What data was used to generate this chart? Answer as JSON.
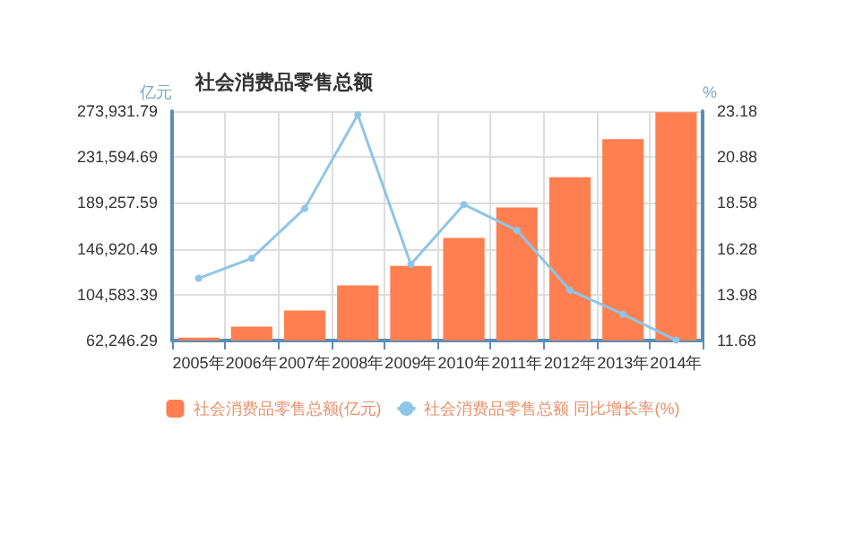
{
  "chart_data": {
    "type": "bar",
    "title": "社会消费品零售总额",
    "ylabel": "亿元",
    "y2label": "%",
    "categories": [
      "2005年",
      "2006年",
      "2007年",
      "2008年",
      "2009年",
      "2010年",
      "2011年",
      "2012年",
      "2013年",
      "2014年"
    ],
    "series": [
      {
        "name": "社会消费品零售总额(亿元)",
        "color": "#ff7f50",
        "values": [
          65000,
          75000,
          90000,
          113000,
          131000,
          157000,
          185000,
          213000,
          248000,
          273000
        ]
      },
      {
        "name": "社会消费品零售总额 同比增长率(%)",
        "type": "line",
        "axis": "y2",
        "color": "#8ec5e8",
        "marker": "circle",
        "values": [
          14.8,
          15.8,
          18.3,
          23.0,
          15.5,
          18.5,
          17.2,
          14.2,
          13.0,
          11.7
        ]
      }
    ],
    "ylim": [
      62246.29,
      273931.79
    ],
    "yticks": [
      {
        "value": 62246.29,
        "label": "62,246.29"
      },
      {
        "value": 104583.39,
        "label": "104,583.39"
      },
      {
        "value": 146920.49,
        "label": "146,920.49"
      },
      {
        "value": 189257.59,
        "label": "189,257.59"
      },
      {
        "value": 231594.69,
        "label": "231,594.69"
      },
      {
        "value": 273931.79,
        "label": "273,931.79"
      }
    ],
    "y2lim": [
      11.68,
      23.18
    ],
    "y2ticks": [
      11.68,
      13.98,
      16.28,
      18.58,
      20.88,
      23.18
    ],
    "grid": true,
    "legend": "bottom"
  }
}
